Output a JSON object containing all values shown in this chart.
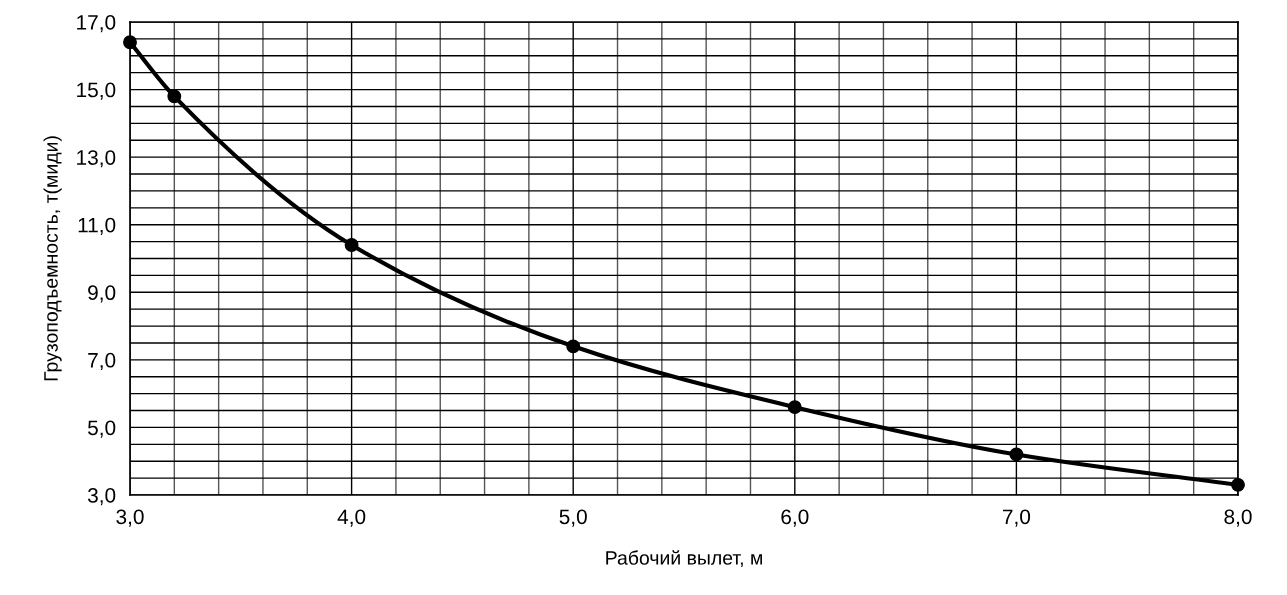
{
  "chart_data": {
    "type": "line",
    "xlabel": "Рабочий вылет, м",
    "ylabel": "Грузоподъемность, т(миди)",
    "x": [
      3,
      3.2,
      4,
      5,
      6,
      7,
      8
    ],
    "series": [
      {
        "color": "#000000",
        "values": [
          16.4,
          14.8,
          10.4,
          7.4,
          5.6,
          4.2,
          3.3
        ]
      }
    ],
    "xlim": [
      3,
      8
    ],
    "ylim": [
      3,
      17
    ],
    "xticks": [
      {
        "value": 3,
        "label": "3,0"
      },
      {
        "value": 4,
        "label": "4,0"
      },
      {
        "value": 5,
        "label": "5,0"
      },
      {
        "value": 6,
        "label": "6,0"
      },
      {
        "value": 7,
        "label": "7,0"
      },
      {
        "value": 8,
        "label": "8,0"
      }
    ],
    "yticks": [
      {
        "value": 3,
        "label": "3,0"
      },
      {
        "value": 5,
        "label": "5,0"
      },
      {
        "value": 7,
        "label": "7,0"
      },
      {
        "value": 9,
        "label": "9,0"
      },
      {
        "value": 11,
        "label": "11,0"
      },
      {
        "value": 13,
        "label": "13,0"
      },
      {
        "value": 15,
        "label": "15,0"
      },
      {
        "value": 17,
        "label": "17,0"
      }
    ],
    "grid": true,
    "marker": "circle",
    "line_style": "solid",
    "legend": false
  }
}
